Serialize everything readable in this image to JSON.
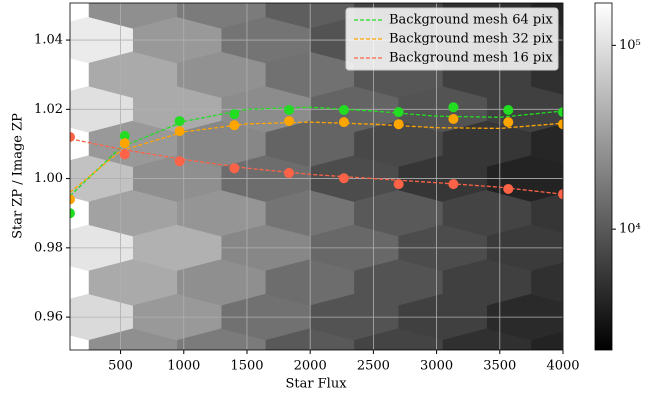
{
  "chart_data": {
    "type": "hexbin-scatter",
    "xlabel": "Star Flux",
    "ylabel": "Star ZP / Image ZP",
    "xlim": [
      100,
      4000
    ],
    "ylim": [
      0.9505,
      1.0507
    ],
    "xticks": [
      500,
      1000,
      1500,
      2000,
      2500,
      3000,
      3500,
      4000
    ],
    "yticks": [
      0.96,
      0.98,
      {
        "value": 1,
        "label": "1.00"
      },
      1.02,
      1.04
    ],
    "grid": true,
    "legend": "upper right",
    "hexbin": {
      "cmap": "gray",
      "log": true,
      "clim": [
        2200,
        170000
      ],
      "cticks": [
        {
          "value": 10000,
          "label": "10⁴"
        },
        {
          "value": 100000,
          "label": "10⁵"
        }
      ],
      "columns": [
        {
          "x": 250,
          "y": [
            0.96,
            0.98,
            1.0,
            1.02,
            1.04
          ],
          "counts": [
            90000,
            110000,
            60000,
            100000,
            120000
          ]
        },
        {
          "x": 600,
          "y": [
            0.95,
            0.97,
            0.99,
            1.01,
            1.03,
            1.05
          ],
          "counts": [
            25000,
            40000,
            35000,
            30000,
            40000,
            25000
          ]
        },
        {
          "x": 950,
          "y": [
            0.96,
            0.98,
            1.0,
            1.02,
            1.04
          ],
          "counts": [
            30000,
            45000,
            25000,
            40000,
            30000
          ]
        },
        {
          "x": 1300,
          "y": [
            0.95,
            0.97,
            0.99,
            1.01,
            1.03,
            1.05
          ],
          "counts": [
            18000,
            25000,
            28000,
            22000,
            26000,
            18000
          ]
        },
        {
          "x": 1650,
          "y": [
            0.96,
            0.98,
            1.0,
            1.02,
            1.04
          ],
          "counts": [
            15000,
            22000,
            14000,
            24000,
            16000
          ]
        },
        {
          "x": 2000,
          "y": [
            0.95,
            0.97,
            0.99,
            1.01,
            1.03,
            1.05
          ],
          "counts": [
            10000,
            14000,
            16000,
            12000,
            15000,
            11000
          ]
        },
        {
          "x": 2350,
          "y": [
            0.96,
            0.98,
            1.0,
            1.02,
            1.04
          ],
          "counts": [
            9000,
            13000,
            8000,
            12000,
            9000
          ]
        },
        {
          "x": 2700,
          "y": [
            0.95,
            0.97,
            0.99,
            1.01,
            1.03,
            1.05
          ],
          "counts": [
            7000,
            9000,
            10000,
            7500,
            9500,
            7000
          ]
        },
        {
          "x": 3050,
          "y": [
            0.96,
            0.98,
            1.0,
            1.02,
            1.04
          ],
          "counts": [
            6500,
            8000,
            5500,
            9000,
            6000
          ]
        },
        {
          "x": 3400,
          "y": [
            0.95,
            0.97,
            0.99,
            1.01,
            1.03,
            1.05
          ],
          "counts": [
            5000,
            6500,
            7000,
            5500,
            6500,
            5000
          ]
        },
        {
          "x": 3750,
          "y": [
            0.96,
            0.98,
            1.0,
            1.02,
            1.04
          ],
          "counts": [
            4500,
            6000,
            4000,
            6500,
            4500
          ]
        },
        {
          "x": 4100,
          "y": [
            0.95,
            0.97,
            0.99,
            1.01,
            1.03,
            1.05
          ],
          "counts": [
            4000,
            5000,
            5500,
            4200,
            5000,
            4000
          ]
        }
      ]
    },
    "x": [
      100,
      533,
      967,
      1400,
      1833,
      2267,
      2700,
      3133,
      3567,
      4000
    ],
    "fit_x": [
      100,
      500,
      1000,
      1500,
      2000,
      2500,
      3000,
      3500,
      4000
    ],
    "series": [
      {
        "name": "Background mesh 64 pix",
        "color": "#22dd22",
        "values": [
          0.99,
          1.0123,
          1.0166,
          1.0186,
          1.0198,
          1.0198,
          1.0192,
          1.0206,
          1.0198,
          1.0192
        ],
        "fit": [
          0.995,
          1.009,
          1.0165,
          1.02,
          1.0206,
          1.0195,
          1.018,
          1.0177,
          1.0195
        ]
      },
      {
        "name": "Background mesh 32 pix",
        "color": "#ffa500",
        "values": [
          0.994,
          1.0102,
          1.0137,
          1.0154,
          1.0166,
          1.0163,
          1.0157,
          1.0172,
          1.0163,
          1.0157
        ],
        "fit": [
          0.996,
          1.008,
          1.0135,
          1.0158,
          1.0163,
          1.0157,
          1.0147,
          1.0145,
          1.016
        ]
      },
      {
        "name": "Background mesh 16 pix",
        "color": "#ff6347",
        "values": [
          1.012,
          1.007,
          1.005,
          1.003,
          1.0016,
          1.0001,
          0.9984,
          0.9984,
          0.997,
          0.9955
        ],
        "fit": [
          1.0115,
          1.0085,
          1.0055,
          1.003,
          1.0012,
          1.0,
          0.9988,
          0.9975,
          0.9955
        ]
      }
    ]
  }
}
